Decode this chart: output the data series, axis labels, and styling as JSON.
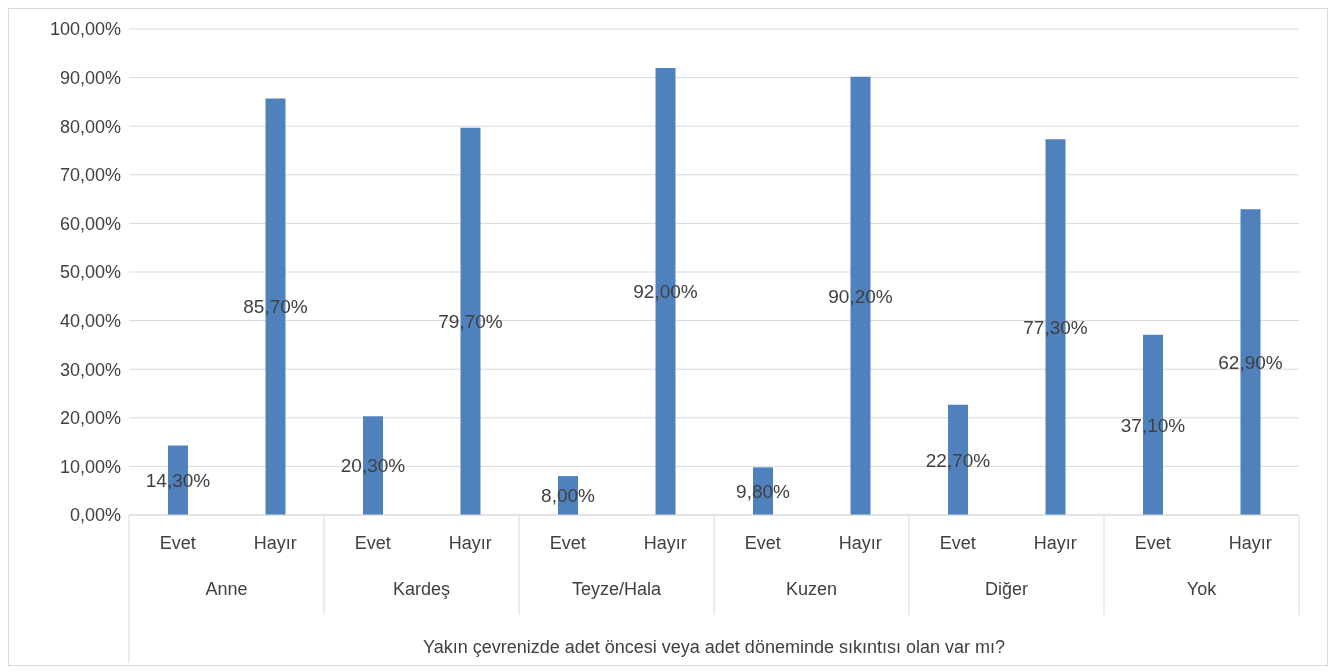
{
  "chart_data": {
    "type": "bar",
    "xlabel": "Yakın çevrenizde adet öncesi veya adet döneminde sıkıntısı olan var mı?",
    "categories": [
      "Evet",
      "Hayır",
      "Evet",
      "Hayır",
      "Evet",
      "Hayır",
      "Evet",
      "Hayır",
      "Evet",
      "Hayır",
      "Evet",
      "Hayır"
    ],
    "values": [
      14.3,
      85.7,
      20.3,
      79.7,
      8.0,
      92.0,
      9.8,
      90.2,
      22.7,
      77.3,
      37.1,
      62.9
    ],
    "value_labels": [
      "14,30%",
      "85,70%",
      "20,30%",
      "79,70%",
      "8,00%",
      "92,00%",
      "9,80%",
      "90,20%",
      "22,70%",
      "77,30%",
      "37,10%",
      "62,90%"
    ],
    "color": "#4f81bd",
    "annotations": [
      "Anne",
      "Kardeş",
      "Teyze/Hala",
      "Kuzen",
      "Diğer",
      "Yok"
    ],
    "ylim": [
      0,
      100
    ],
    "yticks": [
      {
        "value": 0,
        "label": "0,00%"
      },
      {
        "value": 10,
        "label": "10,00%"
      },
      {
        "value": 20,
        "label": "20,00%"
      },
      {
        "value": 30,
        "label": "30,00%"
      },
      {
        "value": 40,
        "label": "40,00%"
      },
      {
        "value": 50,
        "label": "50,00%"
      },
      {
        "value": 60,
        "label": "60,00%"
      },
      {
        "value": 70,
        "label": "70,00%"
      },
      {
        "value": 80,
        "label": "80,00%"
      },
      {
        "value": 90,
        "label": "90,00%"
      },
      {
        "value": 100,
        "label": "100,00%"
      }
    ],
    "grid": "y",
    "legend": false
  }
}
